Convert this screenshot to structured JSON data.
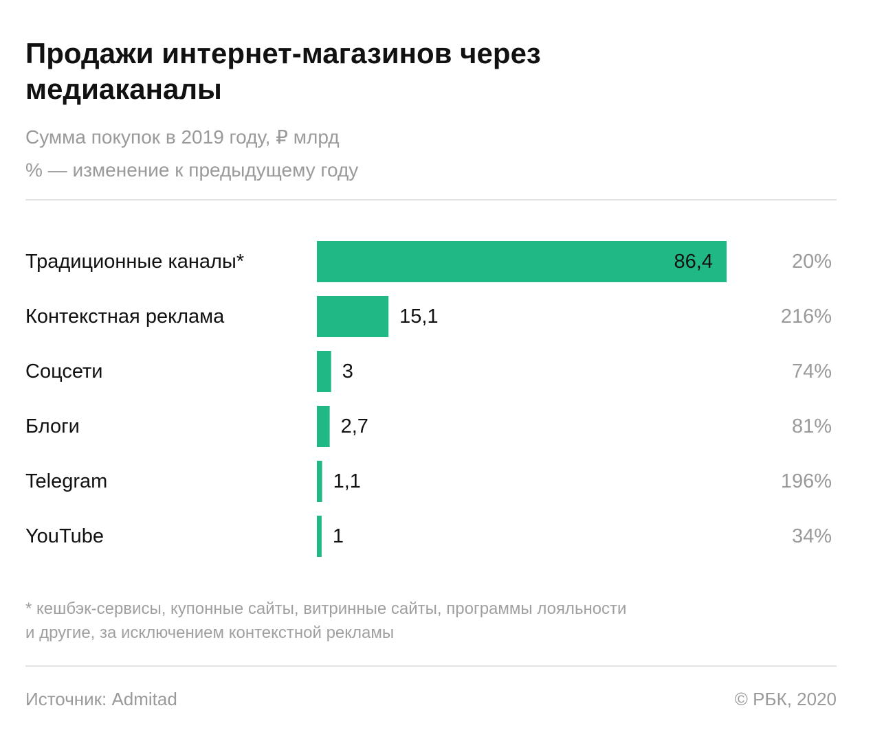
{
  "title": "Продажи интернет-магазинов через медиаканалы",
  "subtitle_line1": "Сумма покупок в 2019 году, ₽ млрд",
  "subtitle_line2": "% — изменение к предыдущему году",
  "footnote_line1": "* кешбэк-сервисы, купонные сайты, витринные сайты, программы лояльности",
  "footnote_line2": "и другие, за исключением контекстной рекламы",
  "source": "Источник: Admitad",
  "copyright": "© РБК, 2020",
  "colors": {
    "bar": "#20b985",
    "label": "#111111",
    "change": "#9a9a9a"
  },
  "chart_data": {
    "type": "bar",
    "orientation": "horizontal",
    "title": "Продажи интернет-магазинов через медиаканалы",
    "xlabel": "Сумма покупок в 2019 году, ₽ млрд",
    "ylabel": "",
    "xlim": [
      0,
      86.4
    ],
    "grid": false,
    "categories": [
      "Традиционные каналы*",
      "Контекстная реклама",
      "Соцсети",
      "Блоги",
      "Telegram",
      "YouTube"
    ],
    "values": [
      86.4,
      15.1,
      3,
      2.7,
      1.1,
      1
    ],
    "value_labels": [
      "86,4",
      "15,1",
      "3",
      "2,7",
      "1,1",
      "1"
    ],
    "change_labels": [
      "20%",
      "216%",
      "74%",
      "81%",
      "196%",
      "34%"
    ]
  }
}
